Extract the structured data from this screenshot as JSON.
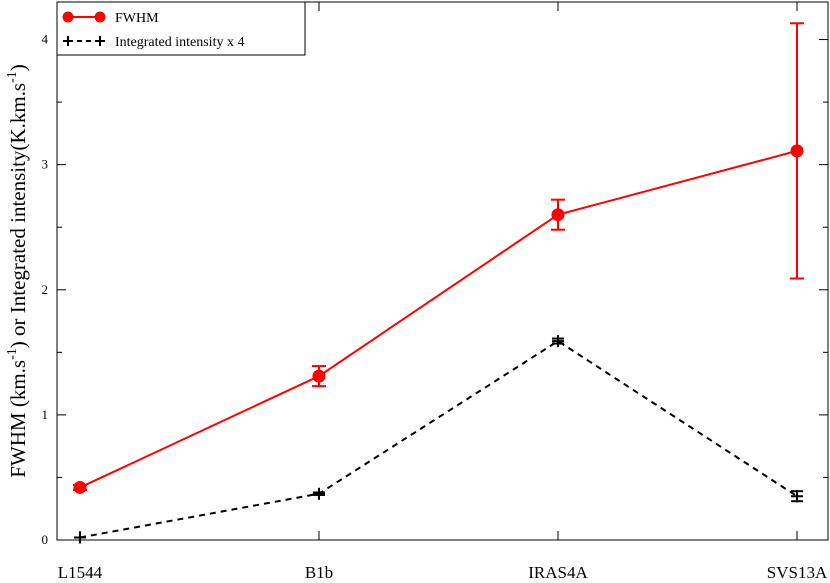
{
  "chart_data": {
    "type": "line",
    "categories": [
      "L1544",
      "B1b",
      "IRAS4A",
      "SVS13A"
    ],
    "ylabel_main": "FWHM (km.s",
    "ylabel_sup1": "-1",
    "ylabel_mid": ") or Integrated intensity(K.km.s",
    "ylabel_sup2": "-1",
    "ylabel_end": ")",
    "ylim": [
      0,
      4.3
    ],
    "yticks": [
      0,
      1,
      2,
      3,
      4
    ],
    "grid": false,
    "legend_position": "top-left",
    "series": [
      {
        "name": "FWHM",
        "color": "#ff0000",
        "line_style": "solid",
        "marker": "circle",
        "values": [
          0.42,
          1.31,
          2.6,
          3.11
        ],
        "error": [
          0.02,
          0.08,
          0.12,
          1.02
        ]
      },
      {
        "name": "Integrated intensity x 4",
        "color": "#000000",
        "line_style": "dashed",
        "marker": "plus",
        "values": [
          0.02,
          0.37,
          1.59,
          0.35
        ],
        "error": [
          0.0,
          0.01,
          0.02,
          0.04
        ]
      }
    ]
  }
}
